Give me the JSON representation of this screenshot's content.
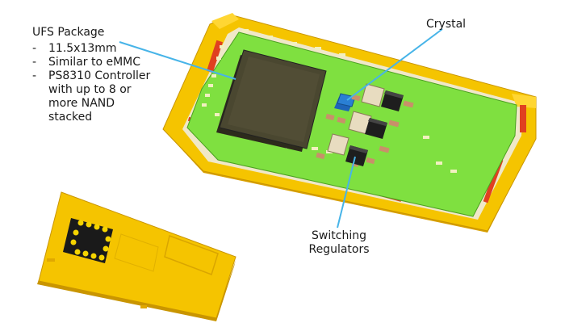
{
  "ufs_package": {
    "title": "UFS Package",
    "items": [
      {
        "bullet": "-",
        "lines": [
          "11.5x13mm"
        ]
      },
      {
        "bullet": "-",
        "lines": [
          "Similar to eMMC"
        ]
      },
      {
        "bullet": "-",
        "lines": [
          "PS8310 Controller",
          "with up to 8 or",
          "more NAND",
          "stacked"
        ]
      }
    ]
  },
  "crystal": {
    "label": "Crystal"
  },
  "switching_regulators": {
    "lines": [
      "Switching",
      "Regulators"
    ]
  },
  "colors": {
    "tray_yellow": "#f5c400",
    "board_green": "#7fe040",
    "chip_dark": "#4a4730",
    "crystal_blue": "#2a7fd4",
    "regulator_black": "#1e1e1e",
    "contact_red": "#e04020",
    "callout_line": "#47b4e8"
  }
}
